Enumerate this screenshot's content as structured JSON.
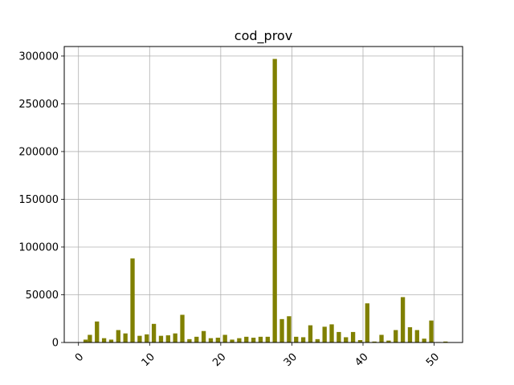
{
  "chart_data": {
    "type": "bar",
    "title": "cod_prov",
    "xlabel": "",
    "ylabel": "",
    "xlim": [
      -2,
      54
    ],
    "ylim": [
      0,
      310000
    ],
    "grid": true,
    "bar_color": "#808000",
    "x_ticks": [
      0,
      10,
      20,
      30,
      40,
      50
    ],
    "y_ticks": [
      0,
      50000,
      100000,
      150000,
      200000,
      250000,
      300000
    ],
    "x_tick_labels": [
      "0",
      "10",
      "20",
      "30",
      "40",
      "50"
    ],
    "y_tick_labels": [
      "0",
      "50000",
      "100000",
      "150000",
      "200000",
      "250000",
      "300000"
    ],
    "bar_width": 0.6,
    "x": [
      1,
      1.6,
      2.6,
      3.6,
      4.6,
      5.6,
      6.6,
      7.6,
      8.6,
      9.6,
      10.6,
      11.6,
      12.6,
      13.6,
      14.6,
      15.6,
      16.6,
      17.6,
      18.6,
      19.6,
      20.6,
      21.6,
      22.6,
      23.6,
      24.6,
      25.6,
      26.6,
      27.6,
      28.6,
      29.6,
      30.6,
      31.6,
      32.6,
      33.6,
      34.6,
      35.6,
      36.6,
      37.6,
      38.6,
      39.6,
      40.6,
      41.6,
      42.6,
      43.6,
      44.6,
      45.6,
      46.6,
      47.6,
      48.6,
      49.6,
      50.6,
      51.6
    ],
    "values": [
      3000,
      8000,
      22000,
      4500,
      3000,
      13000,
      9500,
      88000,
      7000,
      8500,
      19500,
      7000,
      7500,
      9500,
      29000,
      3500,
      6000,
      12000,
      4500,
      5000,
      8000,
      3000,
      4500,
      6000,
      5000,
      6000,
      6000,
      297000,
      24500,
      27500,
      6000,
      5500,
      18000,
      3500,
      16500,
      19000,
      11000,
      5500,
      11000,
      2500,
      41000,
      1000,
      8000,
      2000,
      13000,
      47500,
      16000,
      13000,
      4000,
      23000,
      500,
      1000
    ]
  }
}
